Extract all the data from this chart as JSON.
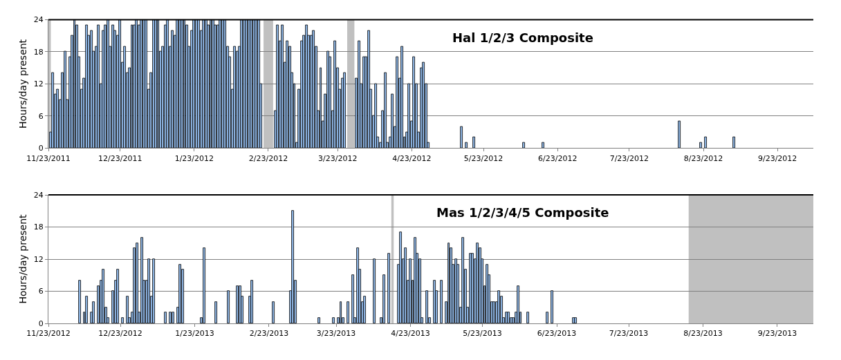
{
  "chart_data": [
    {
      "type": "bar",
      "title": "Hal 1/2/3 Composite",
      "ylabel": "Hours/day present",
      "color": "#8db4e2",
      "grid": "y",
      "x": [
        "2011-11-24",
        "2011-11-25",
        "2011-11-26",
        "2011-11-27",
        "2011-11-28",
        "2011-11-29",
        "2011-11-30",
        "2011-12-01",
        "2011-12-02",
        "2011-12-03",
        "2011-12-04",
        "2011-12-05",
        "2011-12-06",
        "2011-12-07",
        "2011-12-08",
        "2011-12-09",
        "2011-12-10",
        "2011-12-11",
        "2011-12-12",
        "2011-12-13",
        "2011-12-14",
        "2011-12-15",
        "2011-12-16",
        "2011-12-17",
        "2011-12-18",
        "2011-12-19",
        "2011-12-20",
        "2011-12-21",
        "2011-12-22",
        "2011-12-23",
        "2011-12-24",
        "2011-12-25",
        "2011-12-26",
        "2011-12-27",
        "2011-12-28",
        "2011-12-29",
        "2011-12-30",
        "2011-12-31",
        "2012-01-01",
        "2012-01-02",
        "2012-01-03",
        "2012-01-04",
        "2012-01-05",
        "2012-01-06",
        "2012-01-07",
        "2012-01-08",
        "2012-01-09",
        "2012-01-10",
        "2012-01-11",
        "2012-01-12",
        "2012-01-13",
        "2012-01-14",
        "2012-01-15",
        "2012-01-16",
        "2012-01-17",
        "2012-01-18",
        "2012-01-19",
        "2012-01-20",
        "2012-01-21",
        "2012-01-22",
        "2012-01-23",
        "2012-01-24",
        "2012-01-25",
        "2012-01-26",
        "2012-01-27",
        "2012-01-28",
        "2012-01-29",
        "2012-01-30",
        "2012-01-31",
        "2012-02-01",
        "2012-02-02",
        "2012-02-03",
        "2012-02-04",
        "2012-02-05",
        "2012-02-06",
        "2012-02-07",
        "2012-02-08",
        "2012-02-09",
        "2012-02-10",
        "2012-02-11",
        "2012-02-12",
        "2012-02-13",
        "2012-02-14",
        "2012-02-15",
        "2012-02-16",
        "2012-02-17",
        "2012-02-18",
        "2012-02-19",
        "2012-02-20",
        "2012-02-26",
        "2012-02-27",
        "2012-02-28",
        "2012-02-29",
        "2012-03-01",
        "2012-03-02",
        "2012-03-03",
        "2012-03-04",
        "2012-03-05",
        "2012-03-06",
        "2012-03-07",
        "2012-03-08",
        "2012-03-09",
        "2012-03-10",
        "2012-03-11",
        "2012-03-12",
        "2012-03-13",
        "2012-03-14",
        "2012-03-15",
        "2012-03-16",
        "2012-03-17",
        "2012-03-18",
        "2012-03-19",
        "2012-03-20",
        "2012-03-21",
        "2012-03-22",
        "2012-03-23",
        "2012-03-24",
        "2012-03-25",
        "2012-03-26",
        "2012-03-31",
        "2012-04-01",
        "2012-04-02",
        "2012-04-03",
        "2012-04-04",
        "2012-04-05",
        "2012-04-06",
        "2012-04-07",
        "2012-04-08",
        "2012-04-09",
        "2012-04-10",
        "2012-04-11",
        "2012-04-12",
        "2012-04-13",
        "2012-04-14",
        "2012-04-15",
        "2012-04-16",
        "2012-04-17",
        "2012-04-18",
        "2012-04-19",
        "2012-04-20",
        "2012-04-21",
        "2012-04-22",
        "2012-04-23",
        "2012-04-24",
        "2012-04-25",
        "2012-04-26",
        "2012-04-27",
        "2012-04-28",
        "2012-04-29",
        "2012-04-30",
        "2012-05-14",
        "2012-05-16",
        "2012-05-19",
        "2012-06-09",
        "2012-06-17",
        "2012-08-13",
        "2012-08-22",
        "2012-08-24",
        "2012-09-05"
      ],
      "values": [
        3,
        14,
        10,
        11,
        9,
        14,
        18,
        9,
        17,
        21,
        24,
        23,
        17,
        11,
        13,
        23,
        21,
        22,
        18,
        19,
        23,
        12,
        22,
        23,
        24,
        19,
        23,
        22,
        21,
        24,
        16,
        19,
        14,
        15,
        23,
        23,
        24,
        23,
        24,
        24,
        24,
        11,
        14,
        24,
        24,
        24,
        18,
        19,
        23,
        24,
        19,
        22,
        21,
        24,
        24,
        24,
        24,
        23,
        19,
        22,
        24,
        24,
        24,
        22,
        24,
        24,
        23,
        24,
        24,
        23,
        23,
        24,
        24,
        24,
        19,
        17,
        11,
        19,
        18,
        19,
        24,
        24,
        24,
        24,
        24,
        24,
        24,
        24,
        12,
        7,
        23,
        20,
        23,
        16,
        20,
        19,
        14,
        12,
        1,
        11,
        20,
        21,
        23,
        21,
        21,
        22,
        19,
        7,
        15,
        5,
        10,
        18,
        17,
        7,
        20,
        15,
        11,
        13,
        14,
        13,
        20,
        12,
        17,
        17,
        22,
        11,
        6,
        12,
        2,
        1,
        7,
        14,
        1,
        2,
        10,
        4,
        17,
        13,
        19,
        2,
        3,
        12,
        5,
        17,
        12,
        3,
        15,
        16,
        12,
        1,
        4,
        1,
        2,
        1,
        1,
        5,
        1,
        2,
        2
      ],
      "xlim": [
        "2011-11-23",
        "2012-10-08"
      ],
      "xticks": [
        {
          "value": "2011-11-23",
          "label": "11/23/2011"
        },
        {
          "value": "2011-12-23",
          "label": "12/23/2011"
        },
        {
          "value": "2012-01-23",
          "label": "1/23/2012"
        },
        {
          "value": "2012-02-23",
          "label": "2/23/2012"
        },
        {
          "value": "2012-03-23",
          "label": "3/23/2012"
        },
        {
          "value": "2012-04-23",
          "label": "4/23/2012"
        },
        {
          "value": "2012-05-23",
          "label": "5/23/2012"
        },
        {
          "value": "2012-06-23",
          "label": "6/23/2012"
        },
        {
          "value": "2012-07-23",
          "label": "7/23/2012"
        },
        {
          "value": "2012-08-23",
          "label": "8/23/2012"
        },
        {
          "value": "2012-09-23",
          "label": "9/23/2012"
        }
      ],
      "ylim": [
        0,
        24
      ],
      "yticks": [
        0,
        6,
        12,
        18,
        24
      ],
      "bands": [
        {
          "axis": "x",
          "from": "2011-11-23",
          "to": "2011-11-24",
          "color": "#c0c0c0"
        },
        {
          "axis": "x",
          "from": "2012-02-21",
          "to": "2012-02-25",
          "color": "#c0c0c0"
        },
        {
          "axis": "x",
          "from": "2012-03-27",
          "to": "2012-03-30",
          "color": "#c0c0c0"
        }
      ]
    },
    {
      "type": "bar",
      "title": "Mas 1/2/3/4/5 Composite",
      "ylabel": "Hours/day present",
      "color": "#8db4e2",
      "grid": "y",
      "x": [
        "2012-12-06",
        "2012-12-08",
        "2012-12-09",
        "2012-12-11",
        "2012-12-12",
        "2012-12-14",
        "2012-12-15",
        "2012-12-16",
        "2012-12-17",
        "2012-12-18",
        "2012-12-20",
        "2012-12-21",
        "2012-12-22",
        "2012-12-24",
        "2012-12-26",
        "2012-12-27",
        "2012-12-28",
        "2012-12-29",
        "2012-12-30",
        "2012-12-31",
        "2013-01-01",
        "2013-01-02",
        "2013-01-03",
        "2013-01-04",
        "2013-01-05",
        "2013-01-06",
        "2013-01-11",
        "2013-01-13",
        "2013-01-14",
        "2013-01-16",
        "2013-01-17",
        "2013-01-18",
        "2013-01-26",
        "2013-01-27",
        "2013-02-01",
        "2013-02-06",
        "2013-02-10",
        "2013-02-11",
        "2013-02-12",
        "2013-02-15",
        "2013-02-16",
        "2013-02-25",
        "2013-03-04",
        "2013-03-05",
        "2013-03-06",
        "2013-03-16",
        "2013-03-22",
        "2013-03-24",
        "2013-03-25",
        "2013-03-26",
        "2013-03-28",
        "2013-03-30",
        "2013-03-31",
        "2013-04-01",
        "2013-04-02",
        "2013-04-03",
        "2013-04-04",
        "2013-04-08",
        "2013-04-11",
        "2013-04-12",
        "2013-04-14",
        "2013-04-18",
        "2013-04-19",
        "2013-04-20",
        "2013-04-21",
        "2013-04-22",
        "2013-04-23",
        "2013-04-24",
        "2013-04-25",
        "2013-04-26",
        "2013-04-27",
        "2013-04-28",
        "2013-04-30",
        "2013-05-01",
        "2013-05-03",
        "2013-05-04",
        "2013-05-06",
        "2013-05-08",
        "2013-05-09",
        "2013-05-10",
        "2013-05-11",
        "2013-05-12",
        "2013-05-13",
        "2013-05-14",
        "2013-05-15",
        "2013-05-16",
        "2013-05-17",
        "2013-05-18",
        "2013-05-19",
        "2013-05-20",
        "2013-05-21",
        "2013-05-22",
        "2013-05-23",
        "2013-05-24",
        "2013-05-25",
        "2013-05-26",
        "2013-05-27",
        "2013-05-28",
        "2013-05-29",
        "2013-05-30",
        "2013-05-31",
        "2013-06-01",
        "2013-06-02",
        "2013-06-03",
        "2013-06-04",
        "2013-06-05",
        "2013-06-06",
        "2013-06-07",
        "2013-06-08",
        "2013-06-11",
        "2013-06-19",
        "2013-06-21",
        "2013-06-30",
        "2013-07-01"
      ],
      "values": [
        8,
        2,
        5,
        2,
        4,
        7,
        8,
        10,
        3,
        1,
        6,
        8,
        10,
        1,
        5,
        1,
        2,
        14,
        15,
        2,
        16,
        8,
        8,
        12,
        5,
        12,
        2,
        2,
        2,
        3,
        11,
        10,
        1,
        14,
        4,
        6,
        7,
        7,
        5,
        5,
        8,
        4,
        6,
        21,
        8,
        1,
        1,
        1,
        4,
        1,
        4,
        9,
        1,
        14,
        10,
        4,
        5,
        12,
        1,
        9,
        13,
        11,
        17,
        12,
        14,
        8,
        12,
        8,
        16,
        13,
        12,
        1,
        6,
        1,
        8,
        6,
        8,
        4,
        15,
        14,
        11,
        12,
        11,
        3,
        16,
        10,
        3,
        13,
        13,
        12,
        15,
        14,
        12,
        7,
        11,
        9,
        4,
        4,
        4,
        6,
        5,
        1,
        2,
        2,
        1,
        1,
        2,
        7,
        2,
        2,
        2,
        6,
        1,
        1
      ],
      "xlim": [
        "2012-11-23",
        "2013-10-08"
      ],
      "xticks": [
        {
          "value": "2012-11-23",
          "label": "11/23/2012"
        },
        {
          "value": "2012-12-23",
          "label": "12/23/2012"
        },
        {
          "value": "2013-01-23",
          "label": "1/23/2013"
        },
        {
          "value": "2013-02-23",
          "label": "2/23/2013"
        },
        {
          "value": "2013-03-23",
          "label": "3/23/2013"
        },
        {
          "value": "2013-04-23",
          "label": "4/23/2013"
        },
        {
          "value": "2013-05-23",
          "label": "5/23/2013"
        },
        {
          "value": "2013-06-23",
          "label": "6/23/2013"
        },
        {
          "value": "2013-07-23",
          "label": "7/23/2013"
        },
        {
          "value": "2013-08-23",
          "label": "8/23/2013"
        },
        {
          "value": "2013-09-23",
          "label": "9/23/2013"
        }
      ],
      "ylim": [
        0,
        24
      ],
      "yticks": [
        0,
        6,
        12,
        18,
        24
      ],
      "bands": [
        {
          "axis": "x",
          "from": "2013-04-15",
          "to": "2013-04-16",
          "color": "#c0c0c0"
        },
        {
          "axis": "x",
          "from": "2013-08-17",
          "to": "2013-10-08",
          "color": "#c0c0c0"
        }
      ]
    }
  ]
}
